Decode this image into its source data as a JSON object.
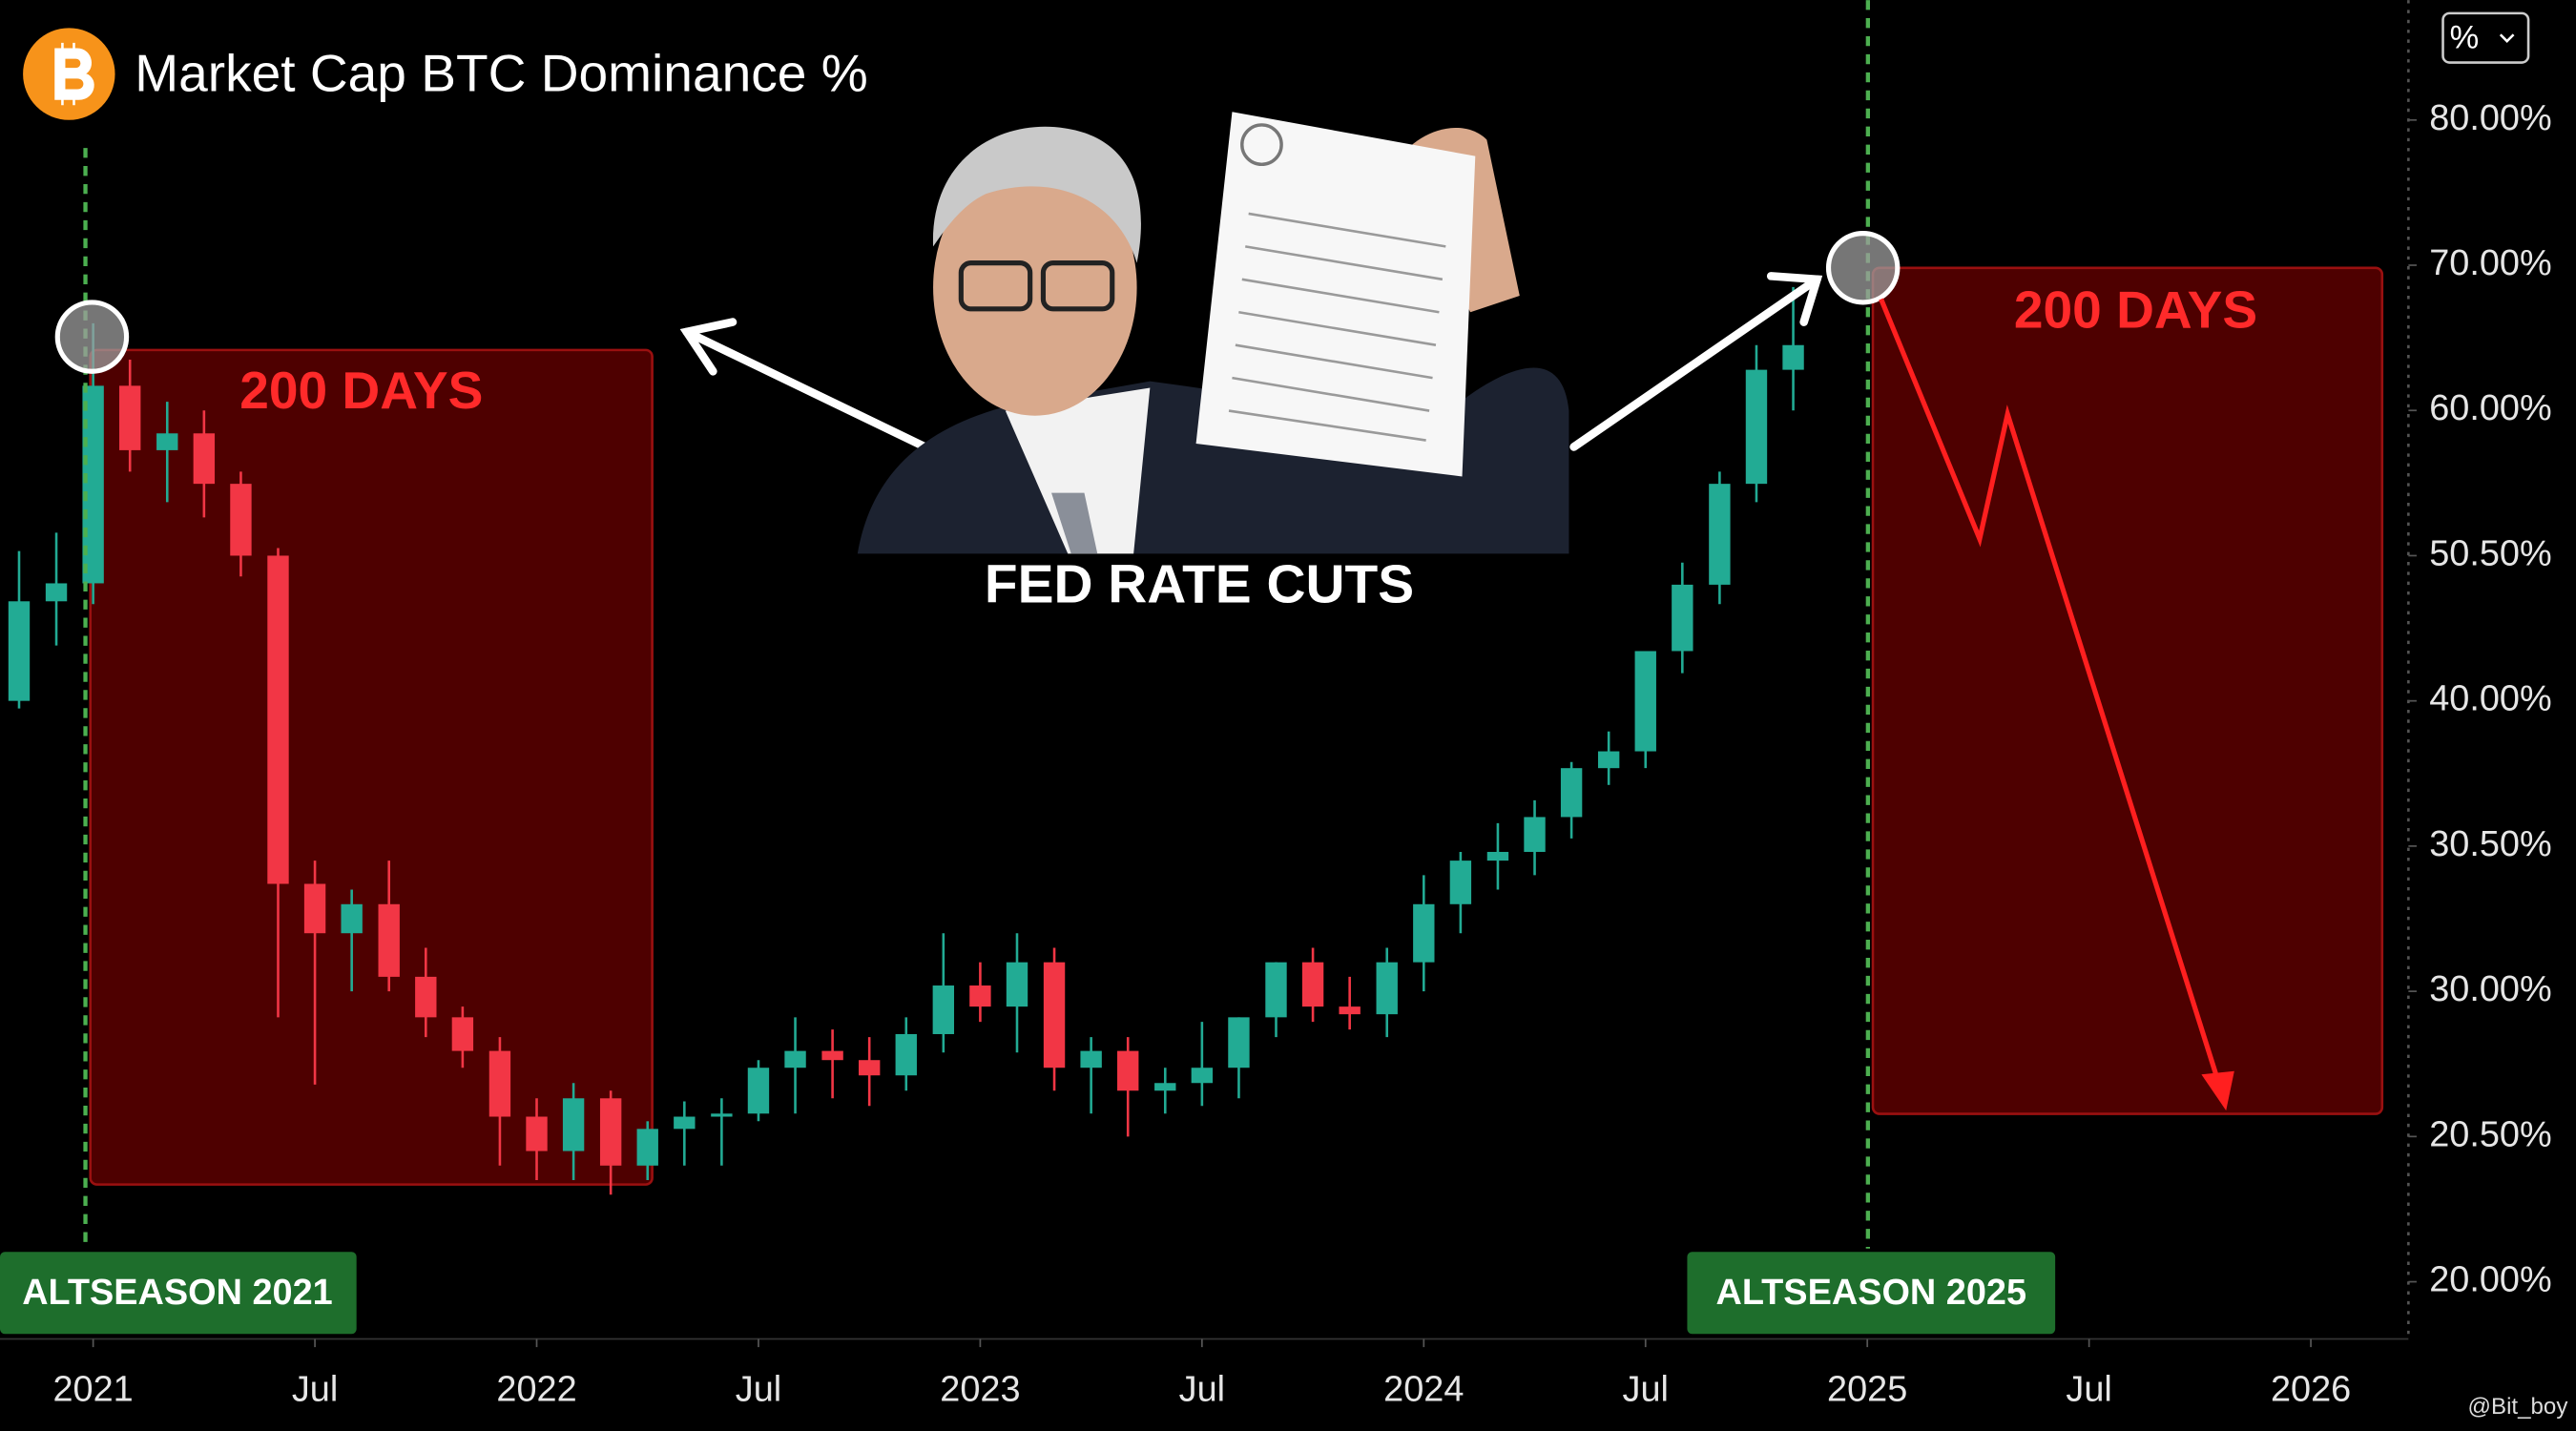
{
  "chart_data": {
    "type": "candlestick",
    "title": "Market Cap BTC Dominance %",
    "scale_button": "%",
    "watermark": "@Bit_boy",
    "up_color": "#22ab94",
    "down_color": "#f23645",
    "annotations": [
      "200 DAYS",
      "200 DAYS",
      "FED RATE CUTS",
      "ALTSEASON 2021",
      "ALTSEASON 2025"
    ],
    "xlim": [
      2020.79,
      2026.22
    ],
    "xticks": [
      {
        "value": 2021,
        "label": "2021"
      },
      {
        "value": 2021.5,
        "label": "Jul"
      },
      {
        "value": 2022,
        "label": "2022"
      },
      {
        "value": 2022.5,
        "label": "Jul"
      },
      {
        "value": 2023,
        "label": "2023"
      },
      {
        "value": 2023.5,
        "label": "Jul"
      },
      {
        "value": 2024,
        "label": "2024"
      },
      {
        "value": 2024.5,
        "label": "Jul"
      },
      {
        "value": 2025,
        "label": "2025"
      },
      {
        "value": 2025.5,
        "label": "Jul"
      },
      {
        "value": 2026,
        "label": "2026"
      }
    ],
    "ylim": [
      19.8,
      88
    ],
    "yticks": [
      {
        "value": 80,
        "label": "80.00%"
      },
      {
        "value": 70,
        "label": "70.00%"
      },
      {
        "value": 60,
        "label": "60.00%"
      },
      {
        "value": 50.5,
        "label": "50.50%"
      },
      {
        "value": 40,
        "label": "40.00%"
      },
      {
        "value": 30.5,
        "label": "30.50%"
      },
      {
        "value": 30,
        "label": "30.00%"
      },
      {
        "value": 20.5,
        "label": "20.50%"
      },
      {
        "value": 20,
        "label": "20.00%"
      }
    ],
    "x": [
      2020.833,
      2020.917,
      2021.0,
      2021.083,
      2021.167,
      2021.25,
      2021.333,
      2021.417,
      2021.5,
      2021.583,
      2021.667,
      2021.75,
      2021.833,
      2021.917,
      2022.0,
      2022.083,
      2022.167,
      2022.25,
      2022.333,
      2022.417,
      2022.5,
      2022.583,
      2022.667,
      2022.75,
      2022.833,
      2022.917,
      2023.0,
      2023.083,
      2023.167,
      2023.25,
      2023.333,
      2023.417,
      2023.5,
      2023.583,
      2023.667,
      2023.75,
      2023.833,
      2023.917,
      2024.0,
      2024.083,
      2024.167,
      2024.25,
      2024.333,
      2024.417,
      2024.5,
      2024.583,
      2024.667,
      2024.75,
      2024.833
    ],
    "open": [
      40,
      47.2,
      48.5,
      61.7,
      57.4,
      58.5,
      55.2,
      50.5,
      30.37,
      30.2,
      30.3,
      30.05,
      28.3,
      26.1,
      21.8,
      20.45,
      23,
      20.4,
      21,
      21.8,
      22,
      25,
      26.1,
      25.5,
      24.5,
      27.2,
      30.02,
      29,
      30.1,
      25,
      26.1,
      23.5,
      24,
      25,
      28.3,
      30.1,
      29,
      28.5,
      30.1,
      30.3,
      30.45,
      30.48,
      32.4,
      35.6,
      36.7,
      43.6,
      48.4,
      55.2,
      62.8
    ],
    "high": [
      50.8,
      52,
      66,
      63.5,
      60.6,
      60,
      56,
      51,
      30.45,
      30.35,
      30.45,
      30.15,
      29,
      27,
      23,
      24,
      23.5,
      21.5,
      22.8,
      23,
      25.5,
      28.3,
      27.5,
      27,
      28.3,
      30.2,
      30.1,
      30.2,
      30.15,
      27,
      27,
      25,
      28,
      28.3,
      30.1,
      30.15,
      30.05,
      30.15,
      30.4,
      30.48,
      32,
      33.5,
      36,
      38,
      43.6,
      50,
      56,
      64.5,
      68.5
    ],
    "low": [
      39.5,
      44,
      47,
      56,
      54,
      53,
      49,
      28.3,
      23.9,
      30.0,
      30.0,
      27,
      25,
      20.4,
      20.35,
      20.35,
      20.3,
      20.35,
      20.4,
      20.4,
      21.5,
      22,
      23,
      22.5,
      23.5,
      26,
      28,
      26,
      23.5,
      22,
      20.5,
      22,
      22.5,
      23,
      27,
      28,
      27.5,
      27,
      30.0,
      30.2,
      30.35,
      30.4,
      31,
      34.5,
      35.6,
      42,
      47,
      54,
      60
    ],
    "close": [
      47.2,
      48.5,
      61.7,
      57.4,
      58.5,
      55.2,
      50.5,
      30.37,
      30.2,
      30.3,
      30.05,
      28.3,
      26.1,
      21.8,
      20.45,
      23,
      20.4,
      21,
      21.8,
      22,
      25,
      26.1,
      25.5,
      24.5,
      27.2,
      30.02,
      29,
      30.1,
      25,
      26.1,
      23.5,
      24,
      25,
      28.3,
      30.1,
      29,
      28.5,
      30.1,
      30.3,
      30.45,
      30.48,
      32.4,
      35.6,
      36.7,
      43.6,
      48.4,
      55.2,
      62.8,
      64.5
    ]
  }
}
